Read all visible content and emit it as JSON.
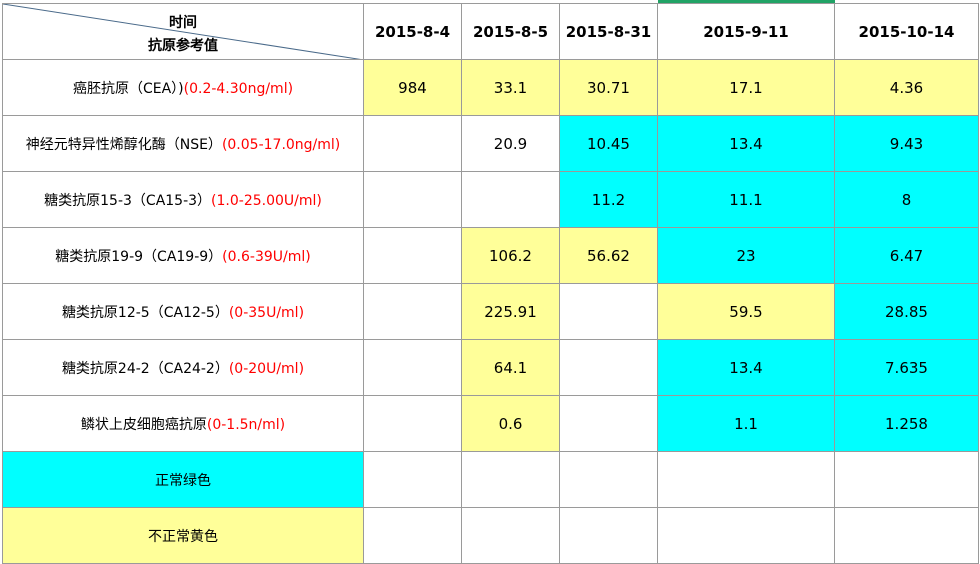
{
  "header": {
    "corner_top": "时间",
    "corner_bottom": "抗原参考值",
    "dates": [
      "2015-8-4",
      "2015-8-5",
      "2015-8-31",
      "2015-9-11",
      "2015-10-14"
    ]
  },
  "rows": [
    {
      "name": "癌胚抗原（CEA）)",
      "range": "(0.2-4.30ng/ml)",
      "cells": [
        {
          "v": "984",
          "s": "y"
        },
        {
          "v": "33.1",
          "s": "y"
        },
        {
          "v": "30.71",
          "s": "y"
        },
        {
          "v": "17.1",
          "s": "y"
        },
        {
          "v": "4.36",
          "s": "y"
        }
      ]
    },
    {
      "name": "神经元特异性烯醇化酶（NSE）",
      "range": "(0.05-17.0ng/ml)",
      "cells": [
        {
          "v": "",
          "s": "w"
        },
        {
          "v": "20.9",
          "s": "w"
        },
        {
          "v": "10.45",
          "s": "c"
        },
        {
          "v": "13.4",
          "s": "c"
        },
        {
          "v": "9.43",
          "s": "c"
        }
      ]
    },
    {
      "name": "糖类抗原15-3（CA15-3）",
      "range": "(1.0-25.00U/ml)",
      "cells": [
        {
          "v": "",
          "s": "w"
        },
        {
          "v": "",
          "s": "w"
        },
        {
          "v": "11.2",
          "s": "c"
        },
        {
          "v": "11.1",
          "s": "c"
        },
        {
          "v": "8",
          "s": "c"
        }
      ]
    },
    {
      "name": "糖类抗原19-9（CA19-9）",
      "range": "(0.6-39U/ml)",
      "cells": [
        {
          "v": "",
          "s": "w"
        },
        {
          "v": "106.2",
          "s": "y"
        },
        {
          "v": "56.62",
          "s": "y"
        },
        {
          "v": "23",
          "s": "c"
        },
        {
          "v": "6.47",
          "s": "c"
        }
      ]
    },
    {
      "name": "糖类抗原12-5（CA12-5）",
      "range": "(0-35U/ml)",
      "cells": [
        {
          "v": "",
          "s": "w"
        },
        {
          "v": "225.91",
          "s": "y"
        },
        {
          "v": "",
          "s": "w"
        },
        {
          "v": "59.5",
          "s": "y"
        },
        {
          "v": "28.85",
          "s": "c"
        }
      ]
    },
    {
      "name": "糖类抗原24-2（CA24-2）",
      "range": "(0-20U/ml)",
      "cells": [
        {
          "v": "",
          "s": "w"
        },
        {
          "v": "64.1",
          "s": "y"
        },
        {
          "v": "",
          "s": "w"
        },
        {
          "v": "13.4",
          "s": "c"
        },
        {
          "v": "7.635",
          "s": "c"
        }
      ]
    },
    {
      "name": "鳞状上皮细胞癌抗原",
      "range": "(0-1.5n/ml)",
      "cells": [
        {
          "v": "",
          "s": "w"
        },
        {
          "v": "0.6",
          "s": "y"
        },
        {
          "v": "",
          "s": "w"
        },
        {
          "v": "1.1",
          "s": "c"
        },
        {
          "v": "1.258",
          "s": "c"
        }
      ]
    }
  ],
  "legend": [
    {
      "label": "正常绿色",
      "s": "c"
    },
    {
      "label": "不正常黄色",
      "s": "y"
    }
  ],
  "colors": {
    "yellow": "#ffff99",
    "cyan": "#00ffff",
    "range_text": "#ff0000",
    "grid": "#9a9a9a"
  }
}
